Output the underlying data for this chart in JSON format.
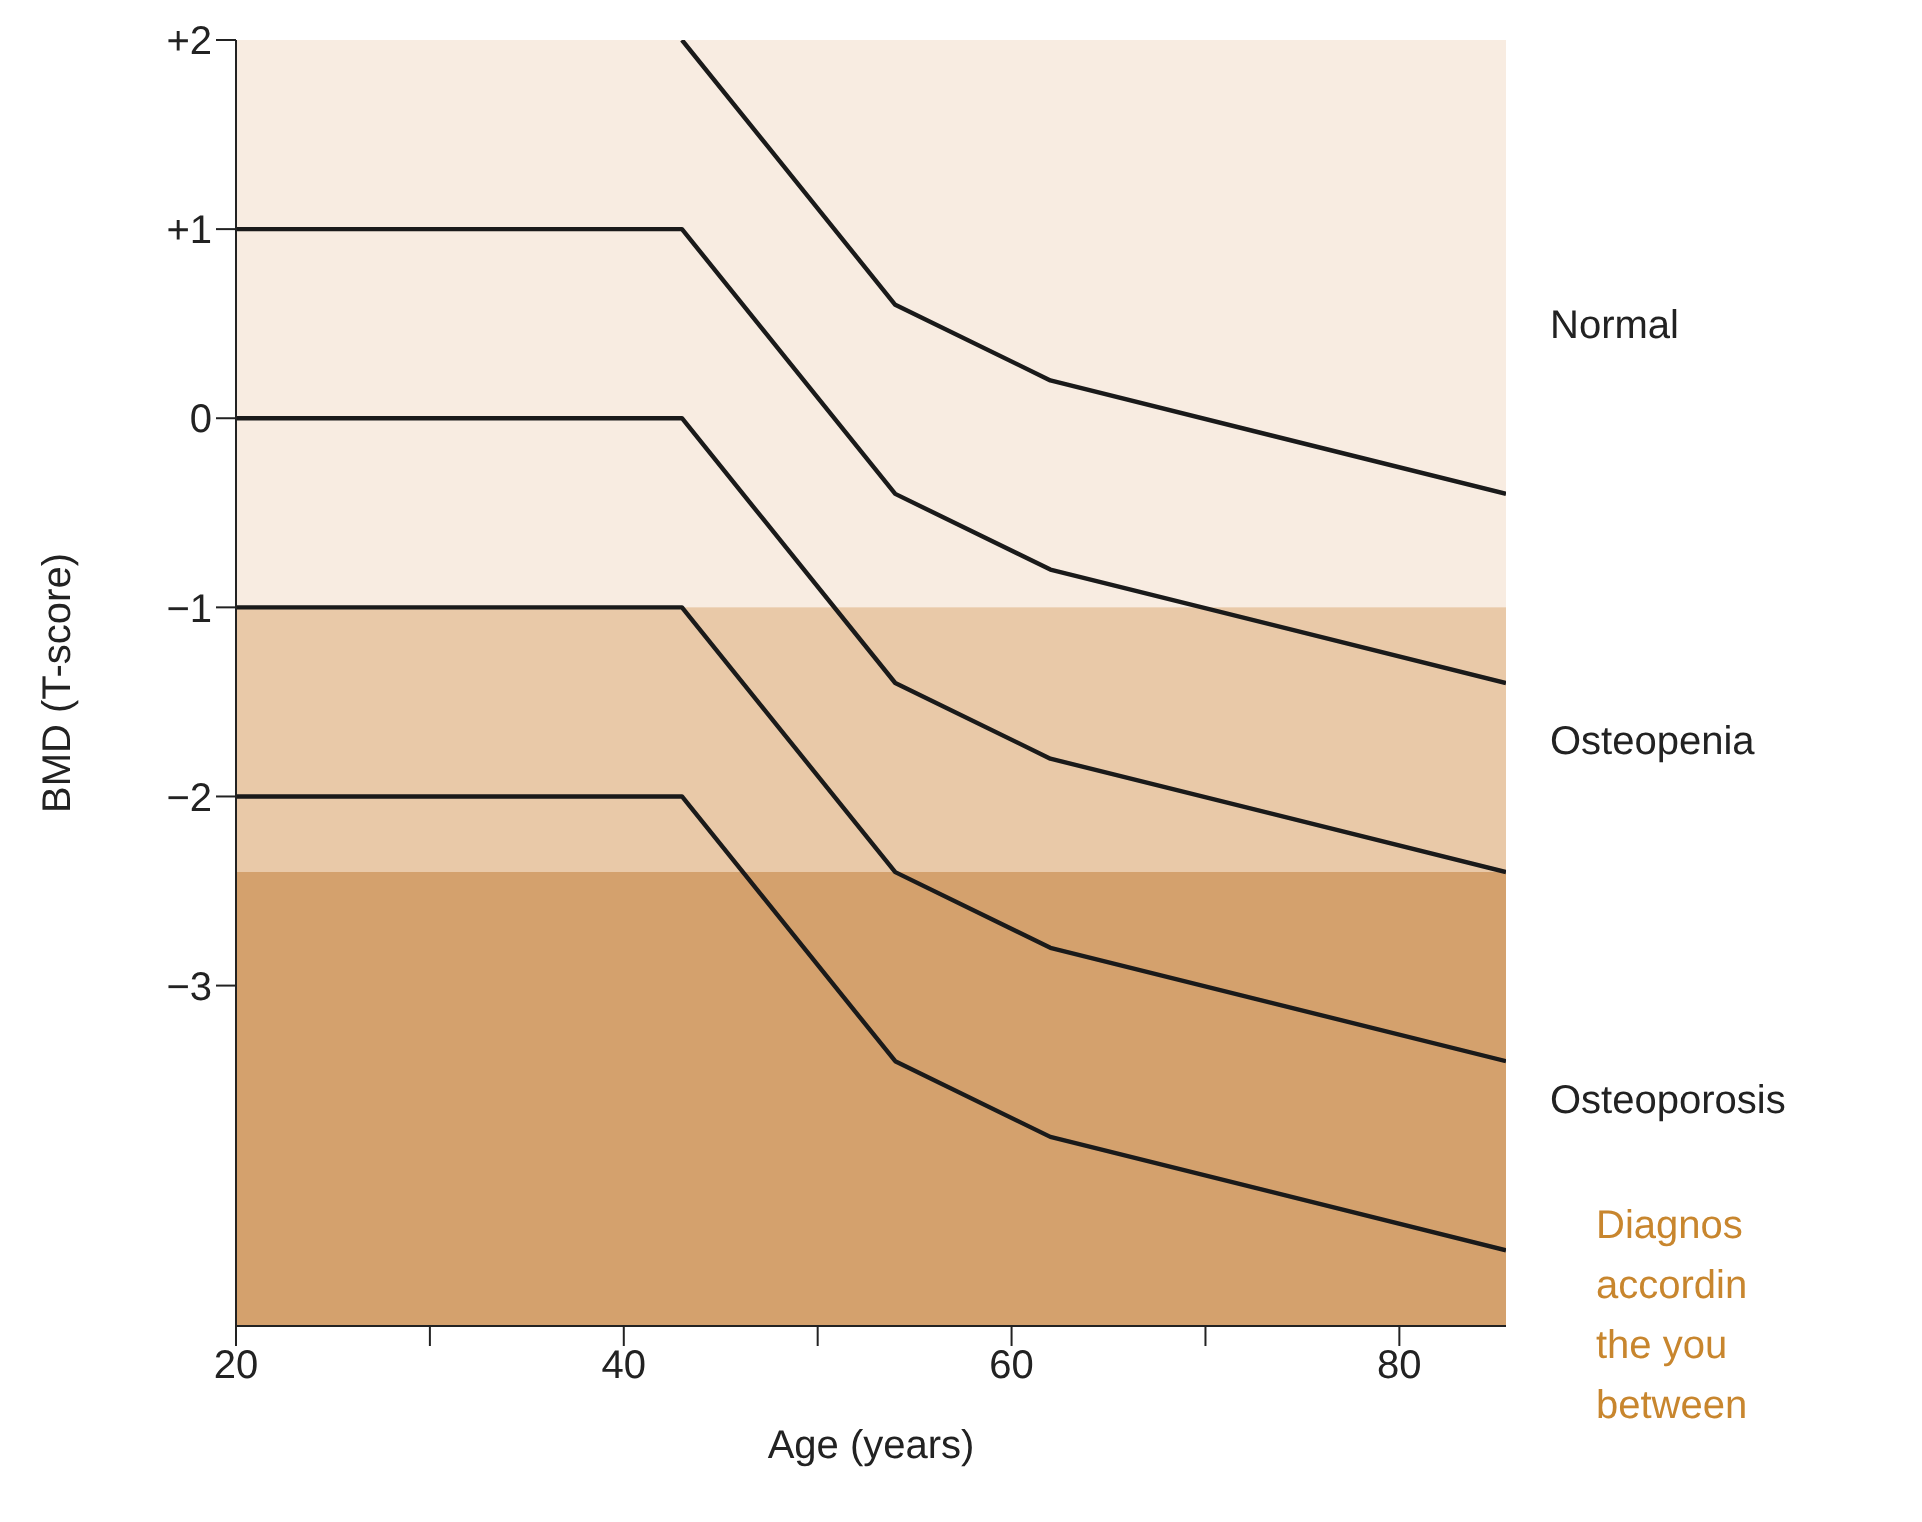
{
  "chart_data": {
    "type": "line",
    "xlabel": "Age (years)",
    "ylabel": "BMD (T-score)",
    "xlim": [
      20,
      85.5
    ],
    "xticks": [
      20,
      {
        "value": 30,
        "label": null
      },
      40,
      {
        "value": 50,
        "label": null
      },
      60,
      {
        "value": 70,
        "label": null
      },
      80
    ],
    "ylim": [
      -4.8,
      2
    ],
    "yticks": [
      {
        "value": 2,
        "label": "+2"
      },
      {
        "value": 1,
        "label": "+1"
      },
      0,
      {
        "value": -1,
        "label": "−1"
      },
      {
        "value": -2,
        "label": "−2"
      },
      {
        "value": -3,
        "label": "−3"
      }
    ],
    "series": [
      {
        "color": "#1a1a1a",
        "x": [
          43,
          54,
          62,
          85.5
        ],
        "values": [
          2,
          0.6,
          0.2,
          -0.4
        ]
      },
      {
        "color": "#1a1a1a",
        "x": [
          20,
          43,
          54,
          62,
          85.5
        ],
        "values": [
          1,
          1,
          -0.4,
          -0.8,
          -1.4
        ]
      },
      {
        "color": "#1a1a1a",
        "x": [
          20,
          43,
          54,
          62,
          85.5
        ],
        "values": [
          0,
          0,
          -1.4,
          -1.8,
          -2.4
        ]
      },
      {
        "color": "#1a1a1a",
        "x": [
          20,
          43,
          54,
          62,
          85.5
        ],
        "values": [
          -1,
          -1,
          -2.4,
          -2.8,
          -3.4
        ]
      },
      {
        "color": "#1a1a1a",
        "x": [
          20,
          43,
          54,
          62,
          85.5
        ],
        "values": [
          -2,
          -2,
          -3.4,
          -3.8,
          -4.4
        ]
      }
    ],
    "bands": [
      {
        "axis": "y",
        "from": -1,
        "to": 2,
        "label": "Normal",
        "color": "#f8ece1"
      },
      {
        "axis": "y",
        "from": -2.4,
        "to": -1,
        "label": "Osteopenia",
        "color": "#e9c9a8"
      },
      {
        "axis": "y",
        "from": -4.8,
        "to": -2.4,
        "label": "Osteoporosis",
        "color": "#d4a16d"
      }
    ],
    "annotations": [
      "Diagnos",
      "accordin",
      "the you",
      "between"
    ],
    "marker": "none",
    "line_style": "solid"
  }
}
